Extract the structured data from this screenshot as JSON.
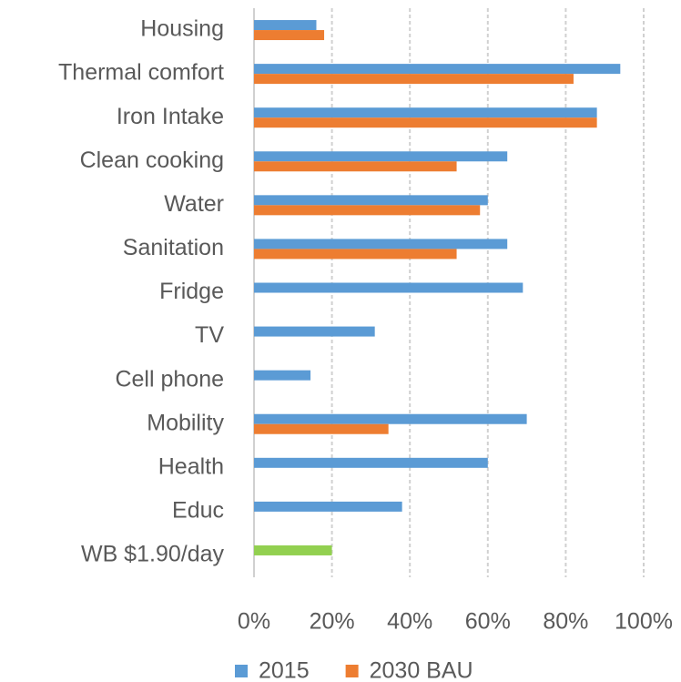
{
  "chart_data": {
    "type": "barh",
    "categories": [
      "Housing",
      "Thermal comfort",
      "Iron Intake",
      "Clean cooking",
      "Water",
      "Sanitation",
      "Fridge",
      "TV",
      "Cell phone",
      "Mobility",
      "Health",
      "Educ",
      "WB $1.90/day"
    ],
    "series": [
      {
        "name": "2015",
        "color": "#5b9bd5",
        "point_colors": [
          "#5b9bd5",
          "#5b9bd5",
          "#5b9bd5",
          "#5b9bd5",
          "#5b9bd5",
          "#5b9bd5",
          "#5b9bd5",
          "#5b9bd5",
          "#5b9bd5",
          "#5b9bd5",
          "#5b9bd5",
          "#5b9bd5",
          "#92d050"
        ],
        "values": [
          16,
          94,
          88,
          65,
          60,
          65,
          69,
          31,
          14.5,
          70,
          60,
          38,
          20
        ]
      },
      {
        "name": "2030 BAU",
        "color": "#ed7d31",
        "values": [
          18,
          82,
          88,
          52,
          58,
          52,
          null,
          null,
          null,
          34.5,
          null,
          null,
          null
        ]
      }
    ],
    "xlim": [
      0,
      100
    ],
    "xticks": [
      {
        "value": 0,
        "label": "0%"
      },
      {
        "value": 20,
        "label": "20%"
      },
      {
        "value": 40,
        "label": "40%"
      },
      {
        "value": 60,
        "label": "60%"
      },
      {
        "value": 80,
        "label": "80%"
      },
      {
        "value": 100,
        "label": "100%"
      }
    ],
    "grid": true,
    "legend": "bottom"
  }
}
